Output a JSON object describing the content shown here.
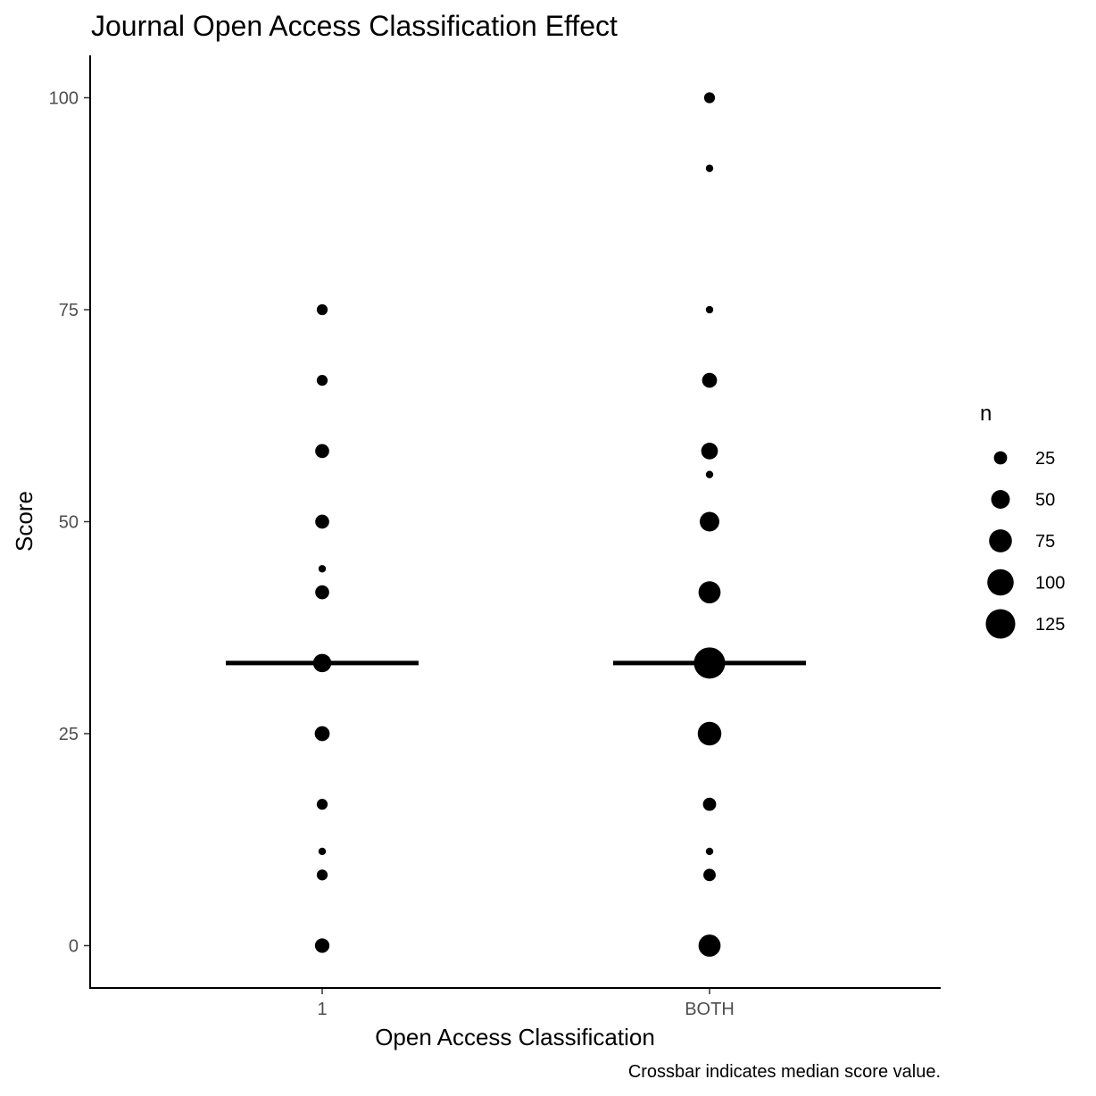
{
  "chart_data": {
    "type": "scatter",
    "title": "Journal Open Access Classification Effect",
    "xlabel": "Open Access Classification",
    "ylabel": "Score",
    "caption": "Crossbar indicates median score value.",
    "categories": [
      "1",
      "BOTH"
    ],
    "ylim": [
      -5,
      105
    ],
    "yticks": [
      0,
      25,
      50,
      75,
      100
    ],
    "grid": false,
    "legend": {
      "title": "n",
      "placement": "right",
      "values": [
        25,
        50,
        75,
        100,
        125
      ]
    },
    "series": [
      {
        "category": "1",
        "points": [
          {
            "score": 0,
            "n": 30
          },
          {
            "score": 8.33,
            "n": 17
          },
          {
            "score": 11.11,
            "n": 8
          },
          {
            "score": 16.67,
            "n": 17
          },
          {
            "score": 25,
            "n": 32
          },
          {
            "score": 33.33,
            "n": 48
          },
          {
            "score": 41.67,
            "n": 28
          },
          {
            "score": 44.44,
            "n": 8
          },
          {
            "score": 50,
            "n": 28
          },
          {
            "score": 58.33,
            "n": 28
          },
          {
            "score": 66.67,
            "n": 17
          },
          {
            "score": 75,
            "n": 17
          }
        ],
        "median": 33.33
      },
      {
        "category": "BOTH",
        "points": [
          {
            "score": 0,
            "n": 70
          },
          {
            "score": 8.33,
            "n": 22
          },
          {
            "score": 11.11,
            "n": 8
          },
          {
            "score": 16.67,
            "n": 25
          },
          {
            "score": 25,
            "n": 80
          },
          {
            "score": 33.33,
            "n": 140
          },
          {
            "score": 41.67,
            "n": 70
          },
          {
            "score": 50,
            "n": 55
          },
          {
            "score": 55.56,
            "n": 8
          },
          {
            "score": 58.33,
            "n": 40
          },
          {
            "score": 66.67,
            "n": 32
          },
          {
            "score": 75,
            "n": 8
          },
          {
            "score": 91.67,
            "n": 8
          },
          {
            "score": 100,
            "n": 17
          }
        ],
        "median": 33.33
      }
    ]
  }
}
